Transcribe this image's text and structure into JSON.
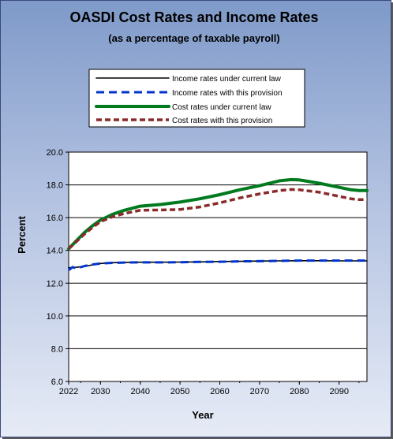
{
  "chart_data": {
    "type": "line",
    "title": "OASDI Cost Rates and Income Rates",
    "subtitle": "(as a percentage of taxable payroll)",
    "xlabel": "Year",
    "ylabel": "Percent",
    "xlim": [
      2022,
      2097
    ],
    "ylim": [
      6.0,
      20.0
    ],
    "x_ticks": [
      "2022",
      "2030",
      "2040",
      "2050",
      "2060",
      "2070",
      "2080",
      "2090"
    ],
    "y_ticks": [
      "6.0",
      "8.0",
      "10.0",
      "12.0",
      "14.0",
      "16.0",
      "18.0",
      "20.0"
    ],
    "grid": "horizontal",
    "legend_position": "top",
    "series": [
      {
        "name": "Income rates under current law",
        "color": "#000000",
        "style": "solid",
        "x": [
          2022,
          2023,
          2024,
          2026,
          2028,
          2030,
          2033,
          2036,
          2040,
          2045,
          2050,
          2055,
          2060,
          2065,
          2070,
          2075,
          2080,
          2085,
          2090,
          2095,
          2097
        ],
        "y": [
          12.95,
          12.95,
          12.97,
          13.02,
          13.12,
          13.2,
          13.25,
          13.27,
          13.28,
          13.28,
          13.29,
          13.3,
          13.32,
          13.33,
          13.35,
          13.36,
          13.37,
          13.37,
          13.36,
          13.36,
          13.36
        ]
      },
      {
        "name": "Income rates with this provision",
        "color": "#0033cc",
        "style": "dashed",
        "x": [
          2022,
          2023,
          2024,
          2026,
          2028,
          2030,
          2033,
          2036,
          2040,
          2045,
          2050,
          2055,
          2060,
          2065,
          2070,
          2075,
          2080,
          2085,
          2090,
          2095,
          2097
        ],
        "y": [
          12.8,
          12.98,
          12.9,
          13.05,
          13.14,
          13.2,
          13.24,
          13.26,
          13.27,
          13.27,
          13.28,
          13.3,
          13.31,
          13.33,
          13.34,
          13.36,
          13.38,
          13.38,
          13.38,
          13.38,
          13.38
        ]
      },
      {
        "name": "Cost rates under current law",
        "color": "#007a1f",
        "style": "solid",
        "x": [
          2022,
          2024,
          2026,
          2028,
          2030,
          2033,
          2036,
          2040,
          2045,
          2050,
          2055,
          2060,
          2065,
          2070,
          2075,
          2078,
          2080,
          2085,
          2090,
          2093,
          2095,
          2097
        ],
        "y": [
          14.1,
          14.6,
          15.1,
          15.5,
          15.85,
          16.2,
          16.45,
          16.7,
          16.8,
          16.95,
          17.15,
          17.4,
          17.7,
          17.95,
          18.25,
          18.32,
          18.3,
          18.1,
          17.85,
          17.7,
          17.65,
          17.65
        ]
      },
      {
        "name": "Cost rates with this provision",
        "color": "#8b2a2a",
        "style": "dashed",
        "x": [
          2022,
          2024,
          2026,
          2028,
          2030,
          2033,
          2036,
          2040,
          2045,
          2050,
          2055,
          2060,
          2065,
          2070,
          2075,
          2078,
          2080,
          2085,
          2090,
          2093,
          2095,
          2097
        ],
        "y": [
          14.1,
          14.55,
          15.0,
          15.4,
          15.75,
          16.05,
          16.25,
          16.45,
          16.47,
          16.5,
          16.65,
          16.9,
          17.2,
          17.45,
          17.65,
          17.72,
          17.7,
          17.55,
          17.3,
          17.15,
          17.1,
          17.1
        ]
      }
    ]
  }
}
